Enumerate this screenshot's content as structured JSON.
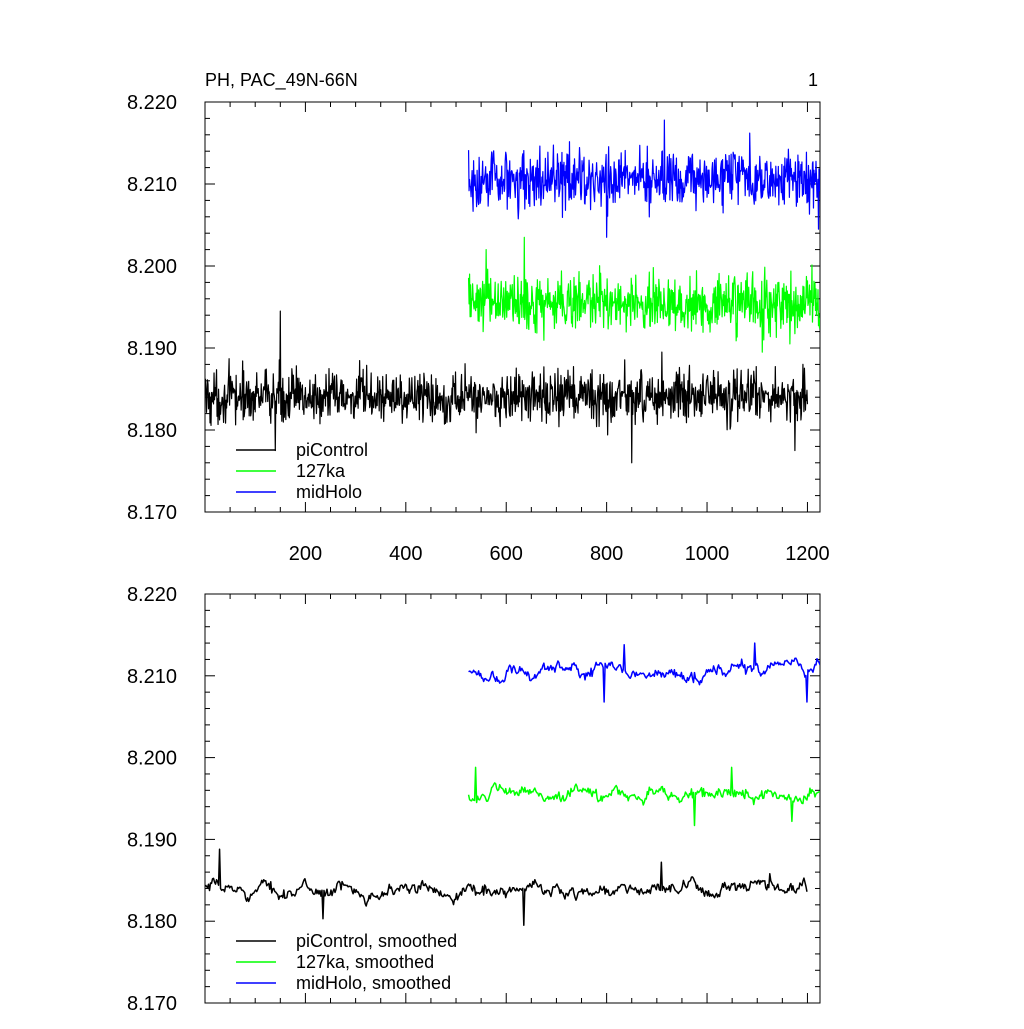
{
  "chart_data": [
    {
      "type": "line",
      "title": "PH, PAC_49N-66N",
      "panel_label": "1",
      "xlim": [
        0,
        1225
      ],
      "ylim": [
        8.17,
        8.22
      ],
      "x_ticks": [
        200,
        400,
        600,
        800,
        1000,
        1200
      ],
      "x_tick_labels": [
        "200",
        "400",
        "600",
        "800",
        "1000",
        "1200"
      ],
      "y_ticks": [
        8.17,
        8.18,
        8.19,
        8.2,
        8.21,
        8.22
      ],
      "y_tick_labels": [
        "8.170",
        "8.180",
        "8.190",
        "8.200",
        "8.210",
        "8.220"
      ],
      "xlabel": "",
      "ylabel": "",
      "grid": false,
      "legend_position": "bottom-left",
      "series": [
        {
          "name": "piControl",
          "color": "#000000",
          "x_range": [
            1,
            1200
          ],
          "mean": 8.184,
          "amplitude": 0.0022,
          "peaks": [
            {
              "x": 150,
              "y": 8.1945
            },
            {
              "x": 910,
              "y": 8.1895
            }
          ],
          "troughs": [
            {
              "x": 140,
              "y": 8.1775
            },
            {
              "x": 850,
              "y": 8.176
            },
            {
              "x": 1175,
              "y": 8.1775
            }
          ]
        },
        {
          "name": "127ka",
          "color": "#00ff00",
          "x_range": [
            525,
            1225
          ],
          "mean": 8.1955,
          "amplitude": 0.0024,
          "peaks": [
            {
              "x": 636,
              "y": 8.2035
            },
            {
              "x": 560,
              "y": 8.202
            }
          ],
          "troughs": [
            {
              "x": 1110,
              "y": 8.1895
            },
            {
              "x": 1165,
              "y": 8.1905
            }
          ]
        },
        {
          "name": "midHolo",
          "color": "#0000ff",
          "x_range": [
            525,
            1225
          ],
          "mean": 8.2105,
          "amplitude": 0.0024,
          "peaks": [
            {
              "x": 915,
              "y": 8.2178
            },
            {
              "x": 1085,
              "y": 8.2162
            }
          ],
          "troughs": [
            {
              "x": 800,
              "y": 8.2035
            },
            {
              "x": 1222,
              "y": 8.2045
            }
          ]
        }
      ]
    },
    {
      "type": "line",
      "title": "",
      "xlim": [
        0,
        1225
      ],
      "ylim": [
        8.17,
        8.22
      ],
      "x_ticks": [
        200,
        400,
        600,
        800,
        1000,
        1200
      ],
      "x_tick_labels": [],
      "y_ticks": [
        8.17,
        8.18,
        8.19,
        8.2,
        8.21,
        8.22
      ],
      "y_tick_labels": [
        "8.170",
        "8.180",
        "8.190",
        "8.200",
        "8.210",
        "8.220"
      ],
      "xlabel": "",
      "ylabel": "",
      "grid": false,
      "legend_position": "bottom-left",
      "series": [
        {
          "name": "piControl, smoothed",
          "color": "#000000",
          "x_range": [
            1,
            1200
          ],
          "mean": 8.1838,
          "amplitude": 0.0011,
          "peaks": [
            {
              "x": 30,
              "y": 8.1888
            },
            {
              "x": 910,
              "y": 8.1872
            },
            {
              "x": 1125,
              "y": 8.1858
            }
          ],
          "troughs": [
            {
              "x": 235,
              "y": 8.1803
            },
            {
              "x": 635,
              "y": 8.1795
            }
          ]
        },
        {
          "name": "127ka, smoothed",
          "color": "#00ff00",
          "x_range": [
            525,
            1225
          ],
          "mean": 8.1955,
          "amplitude": 0.0011,
          "peaks": [
            {
              "x": 540,
              "y": 8.1988
            },
            {
              "x": 1050,
              "y": 8.1988
            }
          ],
          "troughs": [
            {
              "x": 975,
              "y": 8.1917
            },
            {
              "x": 1170,
              "y": 8.1922
            }
          ]
        },
        {
          "name": "midHolo, smoothed",
          "color": "#0000ff",
          "x_range": [
            525,
            1225
          ],
          "mean": 8.2105,
          "amplitude": 0.0011,
          "peaks": [
            {
              "x": 1095,
              "y": 8.214
            },
            {
              "x": 835,
              "y": 8.2138
            }
          ],
          "troughs": [
            {
              "x": 795,
              "y": 8.2068
            },
            {
              "x": 1200,
              "y": 8.2068
            }
          ]
        }
      ]
    }
  ]
}
